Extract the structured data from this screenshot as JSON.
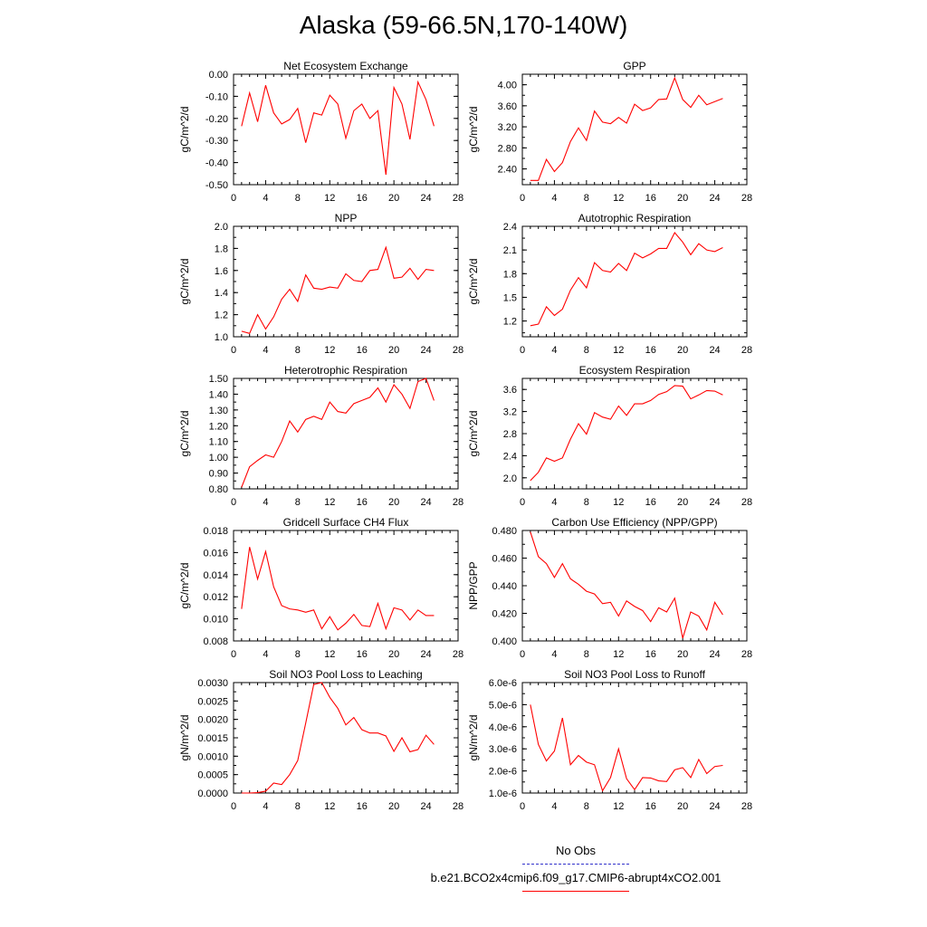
{
  "title": "Alaska (59-66.5N,170-140W)",
  "legend": {
    "obs_label": "No Obs",
    "obs_color": "#3333cc",
    "model_label": "b.e21.BCO2x4cmip6.f09_g17.CMIP6-abrupt4xCO2.001",
    "model_color": "#ff0000"
  },
  "chart_data": [
    {
      "type": "line",
      "title": "Net Ecosystem Exchange",
      "ylabel": "gC/m^2/d",
      "xlim": [
        0,
        28
      ],
      "xticks": [
        "0",
        "4",
        "8",
        "12",
        "16",
        "20",
        "24",
        "28"
      ],
      "ylim": [
        -0.5,
        0
      ],
      "yticks": [
        "0.00",
        "-0.10",
        "-0.20",
        "-0.30",
        "-0.40",
        "-0.50"
      ],
      "x": [
        1,
        2,
        3,
        4,
        5,
        6,
        7,
        8,
        9,
        10,
        11,
        12,
        13,
        14,
        15,
        16,
        17,
        18,
        19,
        20,
        21,
        22,
        23,
        24,
        25
      ],
      "series": [
        {
          "values": [
            -0.235,
            -0.085,
            -0.215,
            -0.05,
            -0.175,
            -0.225,
            -0.205,
            -0.155,
            -0.31,
            -0.175,
            -0.185,
            -0.095,
            -0.135,
            -0.29,
            -0.165,
            -0.135,
            -0.2,
            -0.165,
            -0.455,
            -0.06,
            -0.135,
            -0.295,
            -0.035,
            -0.115,
            -0.235
          ]
        }
      ]
    },
    {
      "type": "line",
      "title": "GPP",
      "ylabel": "gC/m^2/d",
      "xlim": [
        0,
        28
      ],
      "xticks": [
        "0",
        "4",
        "8",
        "12",
        "16",
        "20",
        "24",
        "28"
      ],
      "ylim": [
        2.1,
        4.2
      ],
      "yticks": [
        "4.00",
        "3.60",
        "3.20",
        "2.80",
        "2.40"
      ],
      "x": [
        1,
        2,
        3,
        4,
        5,
        6,
        7,
        8,
        9,
        10,
        11,
        12,
        13,
        14,
        15,
        16,
        17,
        18,
        19,
        20,
        21,
        22,
        23,
        24,
        25
      ],
      "series": [
        {
          "values": [
            2.18,
            2.18,
            2.58,
            2.35,
            2.52,
            2.92,
            3.18,
            2.94,
            3.5,
            3.29,
            3.26,
            3.38,
            3.27,
            3.63,
            3.51,
            3.56,
            3.72,
            3.73,
            4.13,
            3.72,
            3.57,
            3.8,
            3.62,
            3.68,
            3.74
          ]
        }
      ]
    },
    {
      "type": "line",
      "title": "NPP",
      "ylabel": "gC/m^2/d",
      "xlim": [
        0,
        28
      ],
      "xticks": [
        "0",
        "4",
        "8",
        "12",
        "16",
        "20",
        "24",
        "28"
      ],
      "ylim": [
        1.0,
        2.0
      ],
      "yticks": [
        "2.0",
        "1.8",
        "1.6",
        "1.4",
        "1.2",
        "1.0"
      ],
      "x": [
        1,
        2,
        3,
        4,
        5,
        6,
        7,
        8,
        9,
        10,
        11,
        12,
        13,
        14,
        15,
        16,
        17,
        18,
        19,
        20,
        21,
        22,
        23,
        24,
        25
      ],
      "series": [
        {
          "values": [
            1.05,
            1.03,
            1.2,
            1.07,
            1.18,
            1.34,
            1.43,
            1.32,
            1.56,
            1.44,
            1.43,
            1.45,
            1.44,
            1.57,
            1.51,
            1.5,
            1.6,
            1.61,
            1.81,
            1.53,
            1.54,
            1.62,
            1.52,
            1.61,
            1.6
          ]
        }
      ]
    },
    {
      "type": "line",
      "title": "Autotrophic Respiration",
      "ylabel": "gC/m^2/d",
      "xlim": [
        0,
        28
      ],
      "xticks": [
        "0",
        "4",
        "8",
        "12",
        "16",
        "20",
        "24",
        "28"
      ],
      "ylim": [
        1.0,
        2.4
      ],
      "yticks": [
        "2.4",
        "2.1",
        "1.8",
        "1.5",
        "1.2"
      ],
      "x": [
        1,
        2,
        3,
        4,
        5,
        6,
        7,
        8,
        9,
        10,
        11,
        12,
        13,
        14,
        15,
        16,
        17,
        18,
        19,
        20,
        21,
        22,
        23,
        24,
        25
      ],
      "series": [
        {
          "values": [
            1.14,
            1.16,
            1.38,
            1.27,
            1.35,
            1.59,
            1.75,
            1.62,
            1.94,
            1.84,
            1.82,
            1.93,
            1.84,
            2.06,
            2.0,
            2.05,
            2.12,
            2.12,
            2.32,
            2.2,
            2.04,
            2.18,
            2.1,
            2.08,
            2.13
          ]
        }
      ]
    },
    {
      "type": "line",
      "title": "Heterotrophic Respiration",
      "ylabel": "gC/m^2/d",
      "xlim": [
        0,
        28
      ],
      "xticks": [
        "0",
        "4",
        "8",
        "12",
        "16",
        "20",
        "24",
        "28"
      ],
      "ylim": [
        0.8,
        1.5
      ],
      "yticks": [
        "1.50",
        "1.40",
        "1.30",
        "1.20",
        "1.10",
        "1.00",
        "0.90",
        "0.80"
      ],
      "x": [
        1,
        2,
        3,
        4,
        5,
        6,
        7,
        8,
        9,
        10,
        11,
        12,
        13,
        14,
        15,
        16,
        17,
        18,
        19,
        20,
        21,
        22,
        23,
        24,
        25
      ],
      "series": [
        {
          "values": [
            0.81,
            0.94,
            0.98,
            1.015,
            1.0,
            1.1,
            1.23,
            1.16,
            1.24,
            1.26,
            1.24,
            1.35,
            1.29,
            1.28,
            1.34,
            1.36,
            1.38,
            1.44,
            1.35,
            1.46,
            1.4,
            1.31,
            1.48,
            1.5,
            1.36
          ]
        }
      ]
    },
    {
      "type": "line",
      "title": "Ecosystem Respiration",
      "ylabel": "gC/m^2/d",
      "xlim": [
        0,
        28
      ],
      "xticks": [
        "0",
        "4",
        "8",
        "12",
        "16",
        "20",
        "24",
        "28"
      ],
      "ylim": [
        1.8,
        3.8
      ],
      "yticks": [
        "3.6",
        "3.2",
        "2.8",
        "2.4",
        "2.0"
      ],
      "x": [
        1,
        2,
        3,
        4,
        5,
        6,
        7,
        8,
        9,
        10,
        11,
        12,
        13,
        14,
        15,
        16,
        17,
        18,
        19,
        20,
        21,
        22,
        23,
        24,
        25
      ],
      "series": [
        {
          "values": [
            1.95,
            2.1,
            2.36,
            2.3,
            2.36,
            2.7,
            2.98,
            2.79,
            3.18,
            3.1,
            3.06,
            3.3,
            3.13,
            3.34,
            3.34,
            3.4,
            3.51,
            3.56,
            3.67,
            3.66,
            3.43,
            3.5,
            3.58,
            3.57,
            3.5
          ]
        }
      ]
    },
    {
      "type": "line",
      "title": "Gridcell Surface CH4 Flux",
      "ylabel": "gC/m^2/d",
      "xlim": [
        0,
        28
      ],
      "xticks": [
        "0",
        "4",
        "8",
        "12",
        "16",
        "20",
        "24",
        "28"
      ],
      "ylim": [
        0.008,
        0.018
      ],
      "yticks": [
        "0.018",
        "0.016",
        "0.014",
        "0.012",
        "0.010",
        "0.008"
      ],
      "x": [
        1,
        2,
        3,
        4,
        5,
        6,
        7,
        8,
        9,
        10,
        11,
        12,
        13,
        14,
        15,
        16,
        17,
        18,
        19,
        20,
        21,
        22,
        23,
        24,
        25
      ],
      "series": [
        {
          "values": [
            0.0109,
            0.0165,
            0.0136,
            0.0161,
            0.0129,
            0.0112,
            0.0109,
            0.0108,
            0.0106,
            0.0108,
            0.0091,
            0.0102,
            0.009,
            0.0096,
            0.0104,
            0.0094,
            0.0093,
            0.0114,
            0.0091,
            0.011,
            0.0108,
            0.0099,
            0.0108,
            0.0103,
            0.0103
          ]
        }
      ]
    },
    {
      "type": "line",
      "title": "Carbon Use Efficiency (NPP/GPP)",
      "ylabel": "NPP/GPP",
      "xlim": [
        0,
        28
      ],
      "xticks": [
        "0",
        "4",
        "8",
        "12",
        "16",
        "20",
        "24",
        "28"
      ],
      "ylim": [
        0.4,
        0.48
      ],
      "yticks": [
        "0.480",
        "0.460",
        "0.440",
        "0.420",
        "0.400"
      ],
      "x": [
        1,
        2,
        3,
        4,
        5,
        6,
        7,
        8,
        9,
        10,
        11,
        12,
        13,
        14,
        15,
        16,
        17,
        18,
        19,
        20,
        21,
        22,
        23,
        24,
        25
      ],
      "series": [
        {
          "values": [
            0.479,
            0.461,
            0.456,
            0.446,
            0.456,
            0.445,
            0.441,
            0.436,
            0.434,
            0.427,
            0.428,
            0.418,
            0.429,
            0.425,
            0.422,
            0.414,
            0.424,
            0.421,
            0.431,
            0.402,
            0.421,
            0.418,
            0.408,
            0.428,
            0.419
          ]
        }
      ]
    },
    {
      "type": "line",
      "title": "Soil NO3 Pool Loss to Leaching",
      "ylabel": "gN/m^2/d",
      "xlim": [
        0,
        28
      ],
      "xticks": [
        "0",
        "4",
        "8",
        "12",
        "16",
        "20",
        "24",
        "28"
      ],
      "ylim": [
        0,
        0.003
      ],
      "yticks": [
        "0.0030",
        "0.0025",
        "0.0020",
        "0.0015",
        "0.0010",
        "0.0005",
        "0.0000"
      ],
      "x": [
        1,
        2,
        3,
        4,
        5,
        6,
        7,
        8,
        9,
        10,
        11,
        12,
        13,
        14,
        15,
        16,
        17,
        18,
        19,
        20,
        21,
        22,
        23,
        24,
        25
      ],
      "series": [
        {
          "values": [
            0,
            0,
            1e-05,
            5e-05,
            0.00027,
            0.00023,
            0.0005,
            0.00088,
            0.0019,
            0.00295,
            0.003,
            0.0026,
            0.0023,
            0.00185,
            0.00205,
            0.00172,
            0.00163,
            0.00163,
            0.00155,
            0.00113,
            0.0015,
            0.00112,
            0.00118,
            0.00157,
            0.00132
          ]
        }
      ]
    },
    {
      "type": "line",
      "title": "Soil NO3 Pool Loss to Runoff",
      "ylabel": "gN/m^2/d",
      "xlim": [
        0,
        28
      ],
      "xticks": [
        "0",
        "4",
        "8",
        "12",
        "16",
        "20",
        "24",
        "28"
      ],
      "ylim": [
        1e-06,
        6e-06
      ],
      "yticks": [
        "6.0e-6",
        "5.0e-6",
        "4.0e-6",
        "3.0e-6",
        "2.0e-6",
        "1.0e-6"
      ],
      "x": [
        1,
        2,
        3,
        4,
        5,
        6,
        7,
        8,
        9,
        10,
        11,
        12,
        13,
        14,
        15,
        16,
        17,
        18,
        19,
        20,
        21,
        22,
        23,
        24,
        25
      ],
      "series": [
        {
          "values": [
            5e-06,
            3.2e-06,
            2.45e-06,
            2.9e-06,
            4.4e-06,
            2.28e-06,
            2.7e-06,
            2.4e-06,
            2.28e-06,
            1.1e-06,
            1.7e-06,
            3e-06,
            1.65e-06,
            1.15e-06,
            1.7e-06,
            1.68e-06,
            1.55e-06,
            1.52e-06,
            2.05e-06,
            2.15e-06,
            1.7e-06,
            2.52e-06,
            1.88e-06,
            2.2e-06,
            2.25e-06
          ]
        }
      ]
    }
  ]
}
